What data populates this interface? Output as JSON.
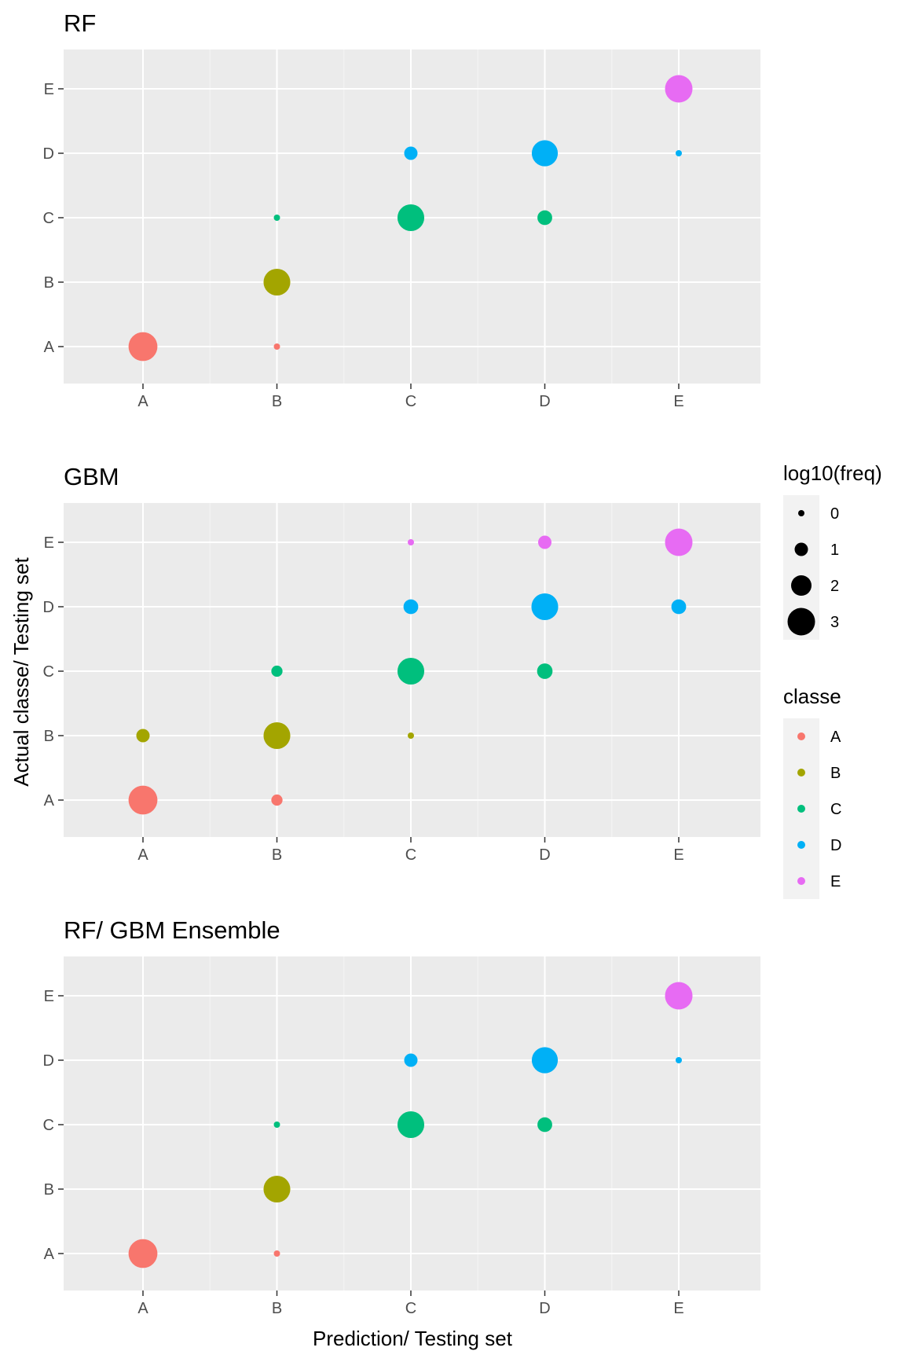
{
  "figure": {
    "xlabel": "Prediction/ Testing set",
    "ylabel": "Actual classe/ Testing set"
  },
  "legend_size": {
    "title": "log10(freq)",
    "items": [
      {
        "label": "0",
        "value": 0
      },
      {
        "label": "1",
        "value": 1
      },
      {
        "label": "2",
        "value": 2
      },
      {
        "label": "3",
        "value": 3
      }
    ]
  },
  "legend_color": {
    "title": "classe",
    "items": [
      {
        "label": "A",
        "color": "#F8766D"
      },
      {
        "label": "B",
        "color": "#A3A500"
      },
      {
        "label": "C",
        "color": "#00BF7D"
      },
      {
        "label": "D",
        "color": "#00B0F6"
      },
      {
        "label": "E",
        "color": "#E76BF3"
      }
    ]
  },
  "chart_data": [
    {
      "type": "scatter",
      "title": "RF",
      "x_categories": [
        "A",
        "B",
        "C",
        "D",
        "E"
      ],
      "y_categories": [
        "A",
        "B",
        "C",
        "D",
        "E"
      ],
      "size_variable": "log10(freq)",
      "color_variable": "classe",
      "points": [
        {
          "x": "A",
          "y": "A",
          "classe": "A",
          "log10freq": 3.2
        },
        {
          "x": "B",
          "y": "A",
          "classe": "A",
          "log10freq": 0
        },
        {
          "x": "B",
          "y": "B",
          "classe": "B",
          "log10freq": 2.9
        },
        {
          "x": "B",
          "y": "C",
          "classe": "C",
          "log10freq": 0
        },
        {
          "x": "C",
          "y": "C",
          "classe": "C",
          "log10freq": 2.9
        },
        {
          "x": "C",
          "y": "D",
          "classe": "D",
          "log10freq": 1.0
        },
        {
          "x": "D",
          "y": "C",
          "classe": "C",
          "log10freq": 1.2
        },
        {
          "x": "D",
          "y": "D",
          "classe": "D",
          "log10freq": 2.8
        },
        {
          "x": "E",
          "y": "D",
          "classe": "D",
          "log10freq": 0
        },
        {
          "x": "E",
          "y": "E",
          "classe": "E",
          "log10freq": 3.0
        }
      ]
    },
    {
      "type": "scatter",
      "title": "GBM",
      "x_categories": [
        "A",
        "B",
        "C",
        "D",
        "E"
      ],
      "y_categories": [
        "A",
        "B",
        "C",
        "D",
        "E"
      ],
      "size_variable": "log10(freq)",
      "color_variable": "classe",
      "points": [
        {
          "x": "A",
          "y": "A",
          "classe": "A",
          "log10freq": 3.2
        },
        {
          "x": "A",
          "y": "B",
          "classe": "B",
          "log10freq": 1.0
        },
        {
          "x": "B",
          "y": "A",
          "classe": "A",
          "log10freq": 0.7
        },
        {
          "x": "B",
          "y": "B",
          "classe": "B",
          "log10freq": 2.9
        },
        {
          "x": "B",
          "y": "C",
          "classe": "C",
          "log10freq": 0.7
        },
        {
          "x": "C",
          "y": "B",
          "classe": "B",
          "log10freq": 0
        },
        {
          "x": "C",
          "y": "C",
          "classe": "C",
          "log10freq": 2.9
        },
        {
          "x": "C",
          "y": "D",
          "classe": "D",
          "log10freq": 1.2
        },
        {
          "x": "C",
          "y": "E",
          "classe": "E",
          "log10freq": 0
        },
        {
          "x": "D",
          "y": "C",
          "classe": "C",
          "log10freq": 1.3
        },
        {
          "x": "D",
          "y": "D",
          "classe": "D",
          "log10freq": 2.9
        },
        {
          "x": "D",
          "y": "E",
          "classe": "E",
          "log10freq": 1.0
        },
        {
          "x": "E",
          "y": "D",
          "classe": "D",
          "log10freq": 1.2
        },
        {
          "x": "E",
          "y": "E",
          "classe": "E",
          "log10freq": 3.0
        }
      ]
    },
    {
      "type": "scatter",
      "title": "RF/ GBM Ensemble",
      "x_categories": [
        "A",
        "B",
        "C",
        "D",
        "E"
      ],
      "y_categories": [
        "A",
        "B",
        "C",
        "D",
        "E"
      ],
      "size_variable": "log10(freq)",
      "color_variable": "classe",
      "points": [
        {
          "x": "A",
          "y": "A",
          "classe": "A",
          "log10freq": 3.2
        },
        {
          "x": "B",
          "y": "A",
          "classe": "A",
          "log10freq": 0
        },
        {
          "x": "B",
          "y": "B",
          "classe": "B",
          "log10freq": 2.9
        },
        {
          "x": "B",
          "y": "C",
          "classe": "C",
          "log10freq": 0
        },
        {
          "x": "C",
          "y": "C",
          "classe": "C",
          "log10freq": 2.9
        },
        {
          "x": "C",
          "y": "D",
          "classe": "D",
          "log10freq": 1.0
        },
        {
          "x": "D",
          "y": "C",
          "classe": "C",
          "log10freq": 1.2
        },
        {
          "x": "D",
          "y": "D",
          "classe": "D",
          "log10freq": 2.8
        },
        {
          "x": "E",
          "y": "D",
          "classe": "D",
          "log10freq": 0
        },
        {
          "x": "E",
          "y": "E",
          "classe": "E",
          "log10freq": 3.0
        }
      ]
    }
  ]
}
